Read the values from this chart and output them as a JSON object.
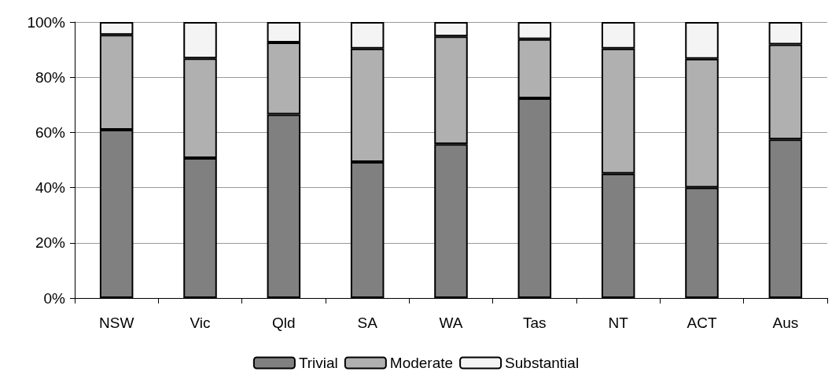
{
  "chart_data": {
    "type": "bar",
    "stacked": true,
    "categories": [
      "NSW",
      "Vic",
      "Qld",
      "SA",
      "WA",
      "Tas",
      "NT",
      "ACT",
      "Aus"
    ],
    "series": [
      {
        "name": "Trivial",
        "color": "#808080",
        "values": [
          61.0,
          50.7,
          66.5,
          49.3,
          55.8,
          72.4,
          45.1,
          40.0,
          57.5
        ]
      },
      {
        "name": "Moderate",
        "color": "#b0b0b0",
        "values": [
          34.4,
          36.1,
          26.1,
          41.1,
          39.0,
          21.4,
          45.3,
          46.7,
          34.4
        ]
      },
      {
        "name": "Substantial",
        "color": "#f4f4f4",
        "values": [
          4.6,
          13.2,
          7.4,
          9.6,
          5.2,
          6.2,
          9.6,
          13.3,
          8.1
        ]
      }
    ],
    "ylim": [
      0,
      100
    ],
    "yticks": [
      {
        "value": 0,
        "label": "0%"
      },
      {
        "value": 20,
        "label": "20%"
      },
      {
        "value": 40,
        "label": "40%"
      },
      {
        "value": 60,
        "label": "60%"
      },
      {
        "value": 80,
        "label": "80%"
      },
      {
        "value": 100,
        "label": "100%"
      }
    ],
    "grid": "y",
    "legend": "bottom"
  }
}
